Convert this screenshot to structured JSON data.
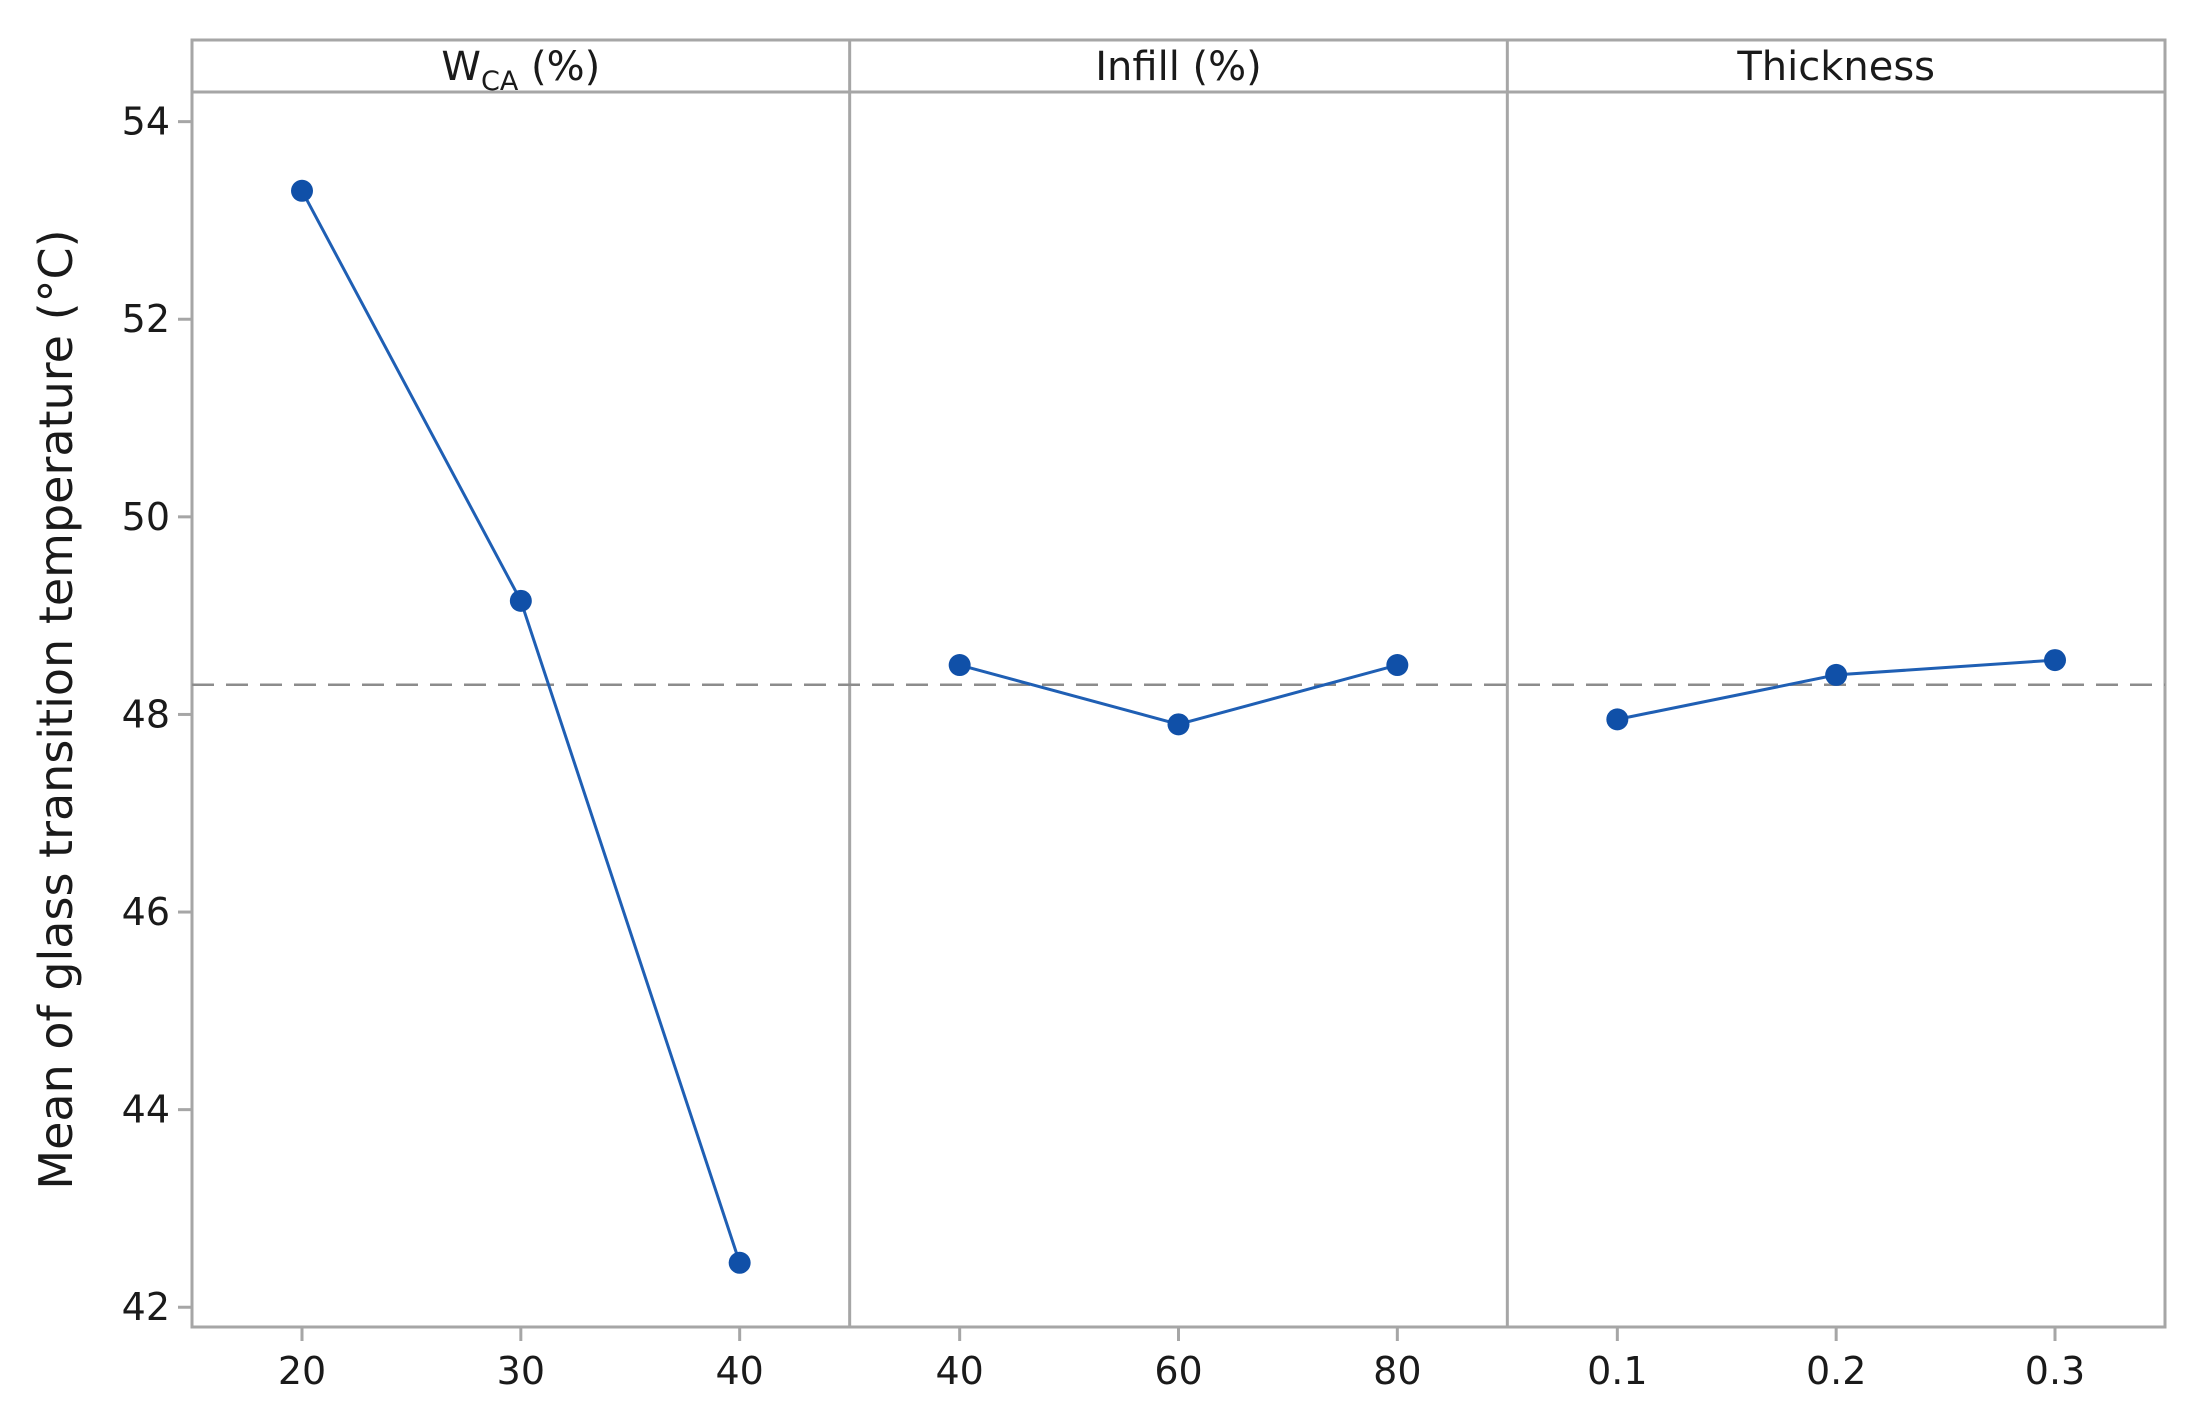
{
  "chart_data": {
    "type": "line",
    "ylabel": "Mean of glass transition temperature (°C)",
    "ylim": [
      41.8,
      54.3
    ],
    "yticks": [
      "42",
      "44",
      "46",
      "48",
      "50",
      "52",
      "54"
    ],
    "reference_line": {
      "value": 48.3,
      "style": "dashed",
      "color": "#8c8c8c"
    },
    "grid": false,
    "line_color": "#1f5fb4",
    "marker_color": "#1050a8",
    "frame_color": "#a6a6a6",
    "panels": [
      {
        "name": "wca",
        "header": {
          "main": "W",
          "sub": "CA",
          "suffix": " (%)"
        },
        "x": [
          "20",
          "30",
          "40"
        ],
        "values": [
          53.3,
          49.15,
          42.45
        ]
      },
      {
        "name": "infill",
        "header": {
          "main": "Infill (%)",
          "sub": "",
          "suffix": ""
        },
        "x": [
          "40",
          "60",
          "80"
        ],
        "values": [
          48.5,
          47.9,
          48.5
        ]
      },
      {
        "name": "thickness",
        "header": {
          "main": "Thickness",
          "sub": "",
          "suffix": ""
        },
        "x": [
          "0.1",
          "0.2",
          "0.3"
        ],
        "values": [
          47.95,
          48.4,
          48.55
        ]
      }
    ]
  }
}
